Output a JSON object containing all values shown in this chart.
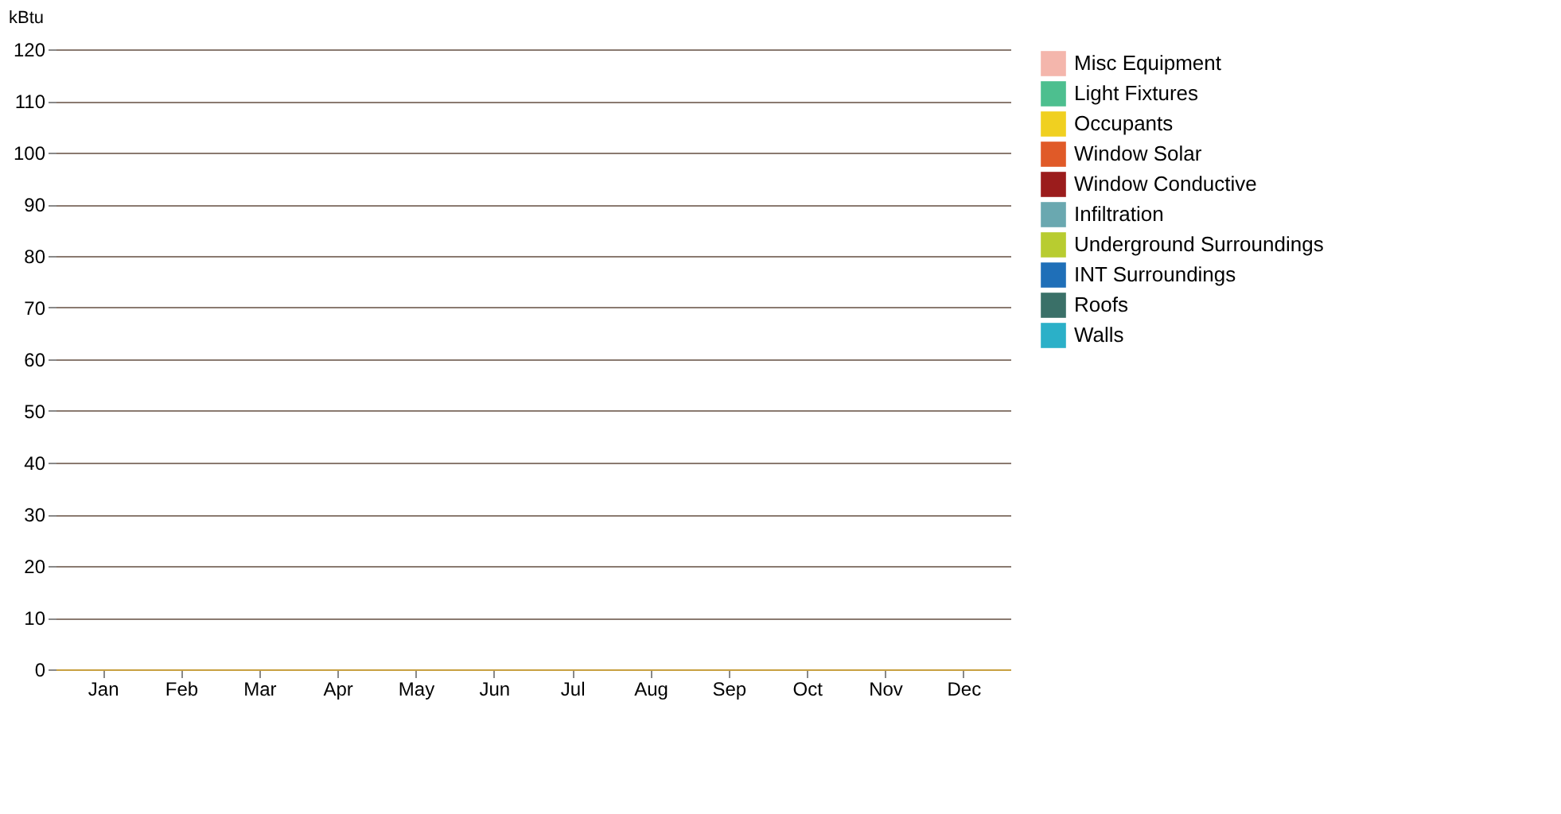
{
  "chart_data": {
    "type": "bar",
    "ylabel": "kBtu",
    "categories": [
      "Jan",
      "Feb",
      "Mar",
      "Apr",
      "May",
      "Jun",
      "Jul",
      "Aug",
      "Sep",
      "Oct",
      "Nov",
      "Dec"
    ],
    "series": [
      {
        "name": "Misc Equipment",
        "color": "#f4b6ac",
        "values": [
          0,
          0,
          0,
          0,
          0,
          0,
          0,
          0,
          0,
          0,
          0,
          0
        ]
      },
      {
        "name": "Light Fixtures",
        "color": "#4dbf8f",
        "values": [
          0,
          0,
          0,
          0,
          0,
          0,
          0,
          0,
          0,
          0,
          0,
          0
        ]
      },
      {
        "name": "Occupants",
        "color": "#f0d020",
        "values": [
          0,
          0,
          0,
          0,
          0,
          0,
          0,
          0,
          0,
          0,
          0,
          0
        ]
      },
      {
        "name": "Window Solar",
        "color": "#e05a28",
        "values": [
          0,
          0,
          0,
          0,
          0,
          0,
          0,
          0,
          0,
          0,
          0,
          0
        ]
      },
      {
        "name": "Window Conductive",
        "color": "#9b1c1c",
        "values": [
          0,
          0,
          0,
          0,
          0,
          0,
          0,
          0,
          0,
          0,
          0,
          0
        ]
      },
      {
        "name": "Infiltration",
        "color": "#6aa8b0",
        "values": [
          0,
          0,
          0,
          0,
          0,
          0,
          0,
          0,
          0,
          0,
          0,
          0
        ]
      },
      {
        "name": "Underground Surroundings",
        "color": "#b8cc30",
        "values": [
          0,
          0,
          0,
          0,
          0,
          0,
          0,
          0,
          0,
          0,
          0,
          0
        ]
      },
      {
        "name": "INT Surroundings",
        "color": "#1f6fb8",
        "values": [
          0,
          0,
          0,
          0,
          0,
          0,
          0,
          0,
          0,
          0,
          0,
          0
        ]
      },
      {
        "name": "Roofs",
        "color": "#3a7068",
        "values": [
          0,
          0,
          0,
          0,
          0,
          0,
          0,
          0,
          0,
          0,
          0,
          0
        ]
      },
      {
        "name": "Walls",
        "color": "#2bb0c8",
        "values": [
          0,
          0,
          0,
          0,
          0,
          0,
          0,
          0,
          0,
          0,
          0,
          0
        ]
      }
    ],
    "ylim": [
      0,
      120
    ],
    "yticks": [
      0,
      10,
      20,
      30,
      40,
      50,
      60,
      70,
      80,
      90,
      100,
      110,
      120
    ],
    "grid": "y",
    "legend": "right"
  }
}
